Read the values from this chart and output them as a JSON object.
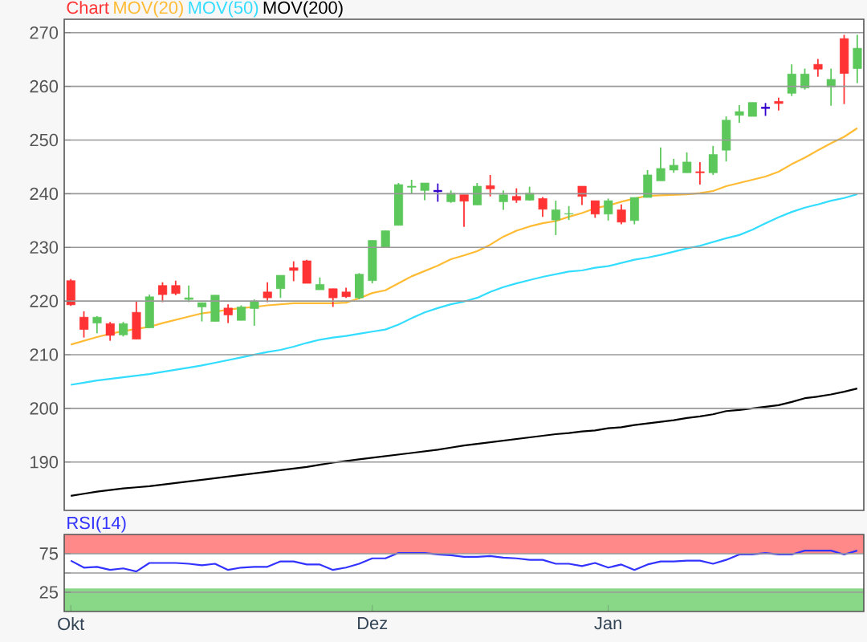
{
  "chart_data": [
    {
      "type": "candlestick",
      "grid": "y",
      "tick_labels": "y",
      "categories": [
        null,
        null,
        null,
        null,
        null,
        null,
        null,
        null,
        null,
        null,
        null,
        null,
        null,
        null,
        null,
        null,
        null,
        null,
        null,
        null,
        null,
        null,
        null,
        null,
        null,
        null,
        null,
        null,
        null,
        null,
        null,
        null,
        null,
        null,
        null,
        null,
        null,
        null,
        null,
        null,
        null,
        null,
        null,
        null,
        null,
        null,
        null,
        null,
        null,
        null,
        null,
        null,
        null,
        null,
        null,
        null,
        null,
        null,
        null,
        null,
        null
      ],
      "ylim": [
        181,
        272.5
      ],
      "yticks": [
        190,
        200,
        210,
        220,
        230,
        240,
        250,
        260,
        270
      ],
      "series": [
        {
          "type": "candlestick",
          "name": "Chart",
          "color": "#ff3333",
          "colors": [
            "#ff3333",
            "#ff3333",
            "#5cc85c",
            "#ff3333",
            "#5cc85c",
            "#ff3333",
            "#5cc85c",
            "#ff3333",
            "#ff3333",
            "#5cc85c",
            "#5cc85c",
            "#5cc85c",
            "#ff3333",
            "#5cc85c",
            "#5cc85c",
            "#ff3333",
            "#5cc85c",
            "#ff3333",
            "#ff3333",
            "#5cc85c",
            "#ff3333",
            "#ff3333",
            "#5cc85c",
            "#5cc85c",
            "#5cc85c",
            "#5cc85c",
            "#5cc85c",
            "#5cc85c",
            "#3300cc",
            "#5cc85c",
            "#ff3333",
            "#5cc85c",
            "#ff3333",
            "#5cc85c",
            "#ff3333",
            "#5cc85c",
            "#ff3333",
            "#5cc85c",
            "#5cc85c",
            "#ff3333",
            "#ff3333",
            "#5cc85c",
            "#ff3333",
            "#5cc85c",
            "#5cc85c",
            "#5cc85c",
            "#5cc85c",
            "#5cc85c",
            "#ff3333",
            "#5cc85c",
            "#5cc85c",
            "#5cc85c",
            "#5cc85c",
            "#3300cc",
            "#ff3333",
            "#5cc85c",
            "#5cc85c",
            "#ff3333",
            "#5cc85c",
            "#ff3333",
            "#5cc85c"
          ],
          "ohlc": [
            [
              223.8,
              224.1,
              219.1,
              219.3
            ],
            [
              217.0,
              218.1,
              213.2,
              214.7
            ],
            [
              215.9,
              217.2,
              214.0,
              217.0
            ],
            [
              215.8,
              216.1,
              212.6,
              213.6
            ],
            [
              213.7,
              216.1,
              213.4,
              215.8
            ],
            [
              217.9,
              220.0,
              212.9,
              212.9
            ],
            [
              215.0,
              221.2,
              215.0,
              220.8
            ],
            [
              222.9,
              223.5,
              219.8,
              221.2
            ],
            [
              222.9,
              223.8,
              221.1,
              221.4
            ],
            [
              220.3,
              222.9,
              219.8,
              220.6
            ],
            [
              218.9,
              219.7,
              216.2,
              219.7
            ],
            [
              216.2,
              221.1,
              216.2,
              221.1
            ],
            [
              218.7,
              219.4,
              215.9,
              217.4
            ],
            [
              216.4,
              219.2,
              216.4,
              218.9
            ],
            [
              218.6,
              220.3,
              215.4,
              220.0
            ],
            [
              221.7,
              223.5,
              219.8,
              220.6
            ],
            [
              222.3,
              224.8,
              220.6,
              224.8
            ],
            [
              226.2,
              227.4,
              223.7,
              225.7
            ],
            [
              227.5,
              227.7,
              223.3,
              223.3
            ],
            [
              222.1,
              224.4,
              222.1,
              223.1
            ],
            [
              222.3,
              222.3,
              218.9,
              220.6
            ],
            [
              221.7,
              222.5,
              220.6,
              220.8
            ],
            [
              220.6,
              225.2,
              220.3,
              225.0
            ],
            [
              223.8,
              231.3,
              223.3,
              231.3
            ],
            [
              230.0,
              233.1,
              230.0,
              233.1
            ],
            [
              234.1,
              242.0,
              234.1,
              241.7
            ],
            [
              241.2,
              242.6,
              240.0,
              241.4
            ],
            [
              240.6,
              242.0,
              238.8,
              242.0
            ],
            [
              240.5,
              241.9,
              238.5,
              240.5
            ],
            [
              238.5,
              240.6,
              238.3,
              240.1
            ],
            [
              239.8,
              239.8,
              233.8,
              238.6
            ],
            [
              237.9,
              242.0,
              237.9,
              241.4
            ],
            [
              241.5,
              243.5,
              239.5,
              240.9
            ],
            [
              238.5,
              240.6,
              237.0,
              239.8
            ],
            [
              239.5,
              241.0,
              238.3,
              238.8
            ],
            [
              238.8,
              241.3,
              238.7,
              240.1
            ],
            [
              239.1,
              239.4,
              235.7,
              237.1
            ],
            [
              235.1,
              238.7,
              232.3,
              237.0
            ],
            [
              236.2,
              237.7,
              235.1,
              236.3
            ],
            [
              241.4,
              241.4,
              237.9,
              239.5
            ],
            [
              238.7,
              238.7,
              235.5,
              236.2
            ],
            [
              236.2,
              239.1,
              235.0,
              238.7
            ],
            [
              237.0,
              238.0,
              234.3,
              234.7
            ],
            [
              235.0,
              239.3,
              234.3,
              239.3
            ],
            [
              239.3,
              244.4,
              239.3,
              243.5
            ],
            [
              242.4,
              248.6,
              242.4,
              244.7
            ],
            [
              244.4,
              246.5,
              243.9,
              245.3
            ],
            [
              243.9,
              247.7,
              243.9,
              245.9
            ],
            [
              244.1,
              245.9,
              241.7,
              243.9
            ],
            [
              243.9,
              248.9,
              243.5,
              247.3
            ],
            [
              248.1,
              254.4,
              246.0,
              253.7
            ],
            [
              254.6,
              256.5,
              253.2,
              255.3
            ],
            [
              254.4,
              257.0,
              254.4,
              257.0
            ],
            [
              256.0,
              256.9,
              254.5,
              256.0
            ],
            [
              257.2,
              257.9,
              255.5,
              256.8
            ],
            [
              258.7,
              264.1,
              258.2,
              262.3
            ],
            [
              259.7,
              263.3,
              259.4,
              262.3
            ],
            [
              264.1,
              265.1,
              261.8,
              263.2
            ],
            [
              259.9,
              263.3,
              256.4,
              261.3
            ],
            [
              268.9,
              269.6,
              256.7,
              262.4
            ],
            [
              263.3,
              269.6,
              260.6,
              267.1
            ]
          ]
        },
        {
          "type": "line",
          "name": "MOV(20)",
          "color": "#ffbb33",
          "values": [
            211.9,
            212.6,
            213.3,
            213.9,
            214.4,
            214.8,
            215.2,
            215.9,
            216.5,
            217.1,
            217.7,
            218.0,
            218.4,
            218.7,
            218.9,
            219.2,
            219.4,
            219.6,
            219.6,
            219.6,
            219.6,
            219.7,
            220.5,
            221.5,
            222.0,
            223.3,
            224.6,
            225.6,
            226.6,
            227.8,
            228.5,
            229.3,
            230.5,
            232.0,
            233.1,
            233.9,
            234.5,
            234.9,
            235.7,
            236.4,
            237.3,
            237.8,
            238.5,
            239.1,
            239.6,
            239.7,
            239.8,
            239.9,
            240.1,
            240.5,
            241.4,
            242.0,
            242.6,
            243.2,
            244.1,
            245.5,
            246.7,
            248.1,
            249.4,
            250.6,
            252.2
          ]
        },
        {
          "type": "line",
          "name": "MOV(50)",
          "color": "#33ddff",
          "values": [
            204.4,
            204.8,
            205.2,
            205.5,
            205.8,
            206.1,
            206.4,
            206.8,
            207.2,
            207.6,
            208.0,
            208.5,
            209.0,
            209.5,
            210.0,
            210.5,
            210.9,
            211.5,
            212.2,
            212.8,
            213.2,
            213.5,
            213.9,
            214.3,
            214.7,
            215.6,
            216.8,
            217.9,
            218.7,
            219.4,
            219.9,
            220.6,
            221.7,
            222.6,
            223.3,
            223.9,
            224.5,
            225.0,
            225.5,
            225.7,
            226.2,
            226.5,
            227.1,
            227.7,
            228.1,
            228.6,
            229.2,
            229.8,
            230.3,
            231.0,
            231.7,
            232.3,
            233.3,
            234.5,
            235.6,
            236.6,
            237.4,
            238.0,
            238.7,
            239.2,
            239.9
          ]
        },
        {
          "type": "line",
          "name": "MOV(200)",
          "color": "#000000",
          "values": [
            183.7,
            184.1,
            184.5,
            184.8,
            185.1,
            185.3,
            185.5,
            185.8,
            186.1,
            186.4,
            186.7,
            187.0,
            187.3,
            187.6,
            187.9,
            188.2,
            188.5,
            188.8,
            189.1,
            189.5,
            189.9,
            190.2,
            190.5,
            190.8,
            191.1,
            191.4,
            191.7,
            192.0,
            192.3,
            192.7,
            193.1,
            193.4,
            193.7,
            194.0,
            194.3,
            194.6,
            194.9,
            195.2,
            195.4,
            195.7,
            195.9,
            196.3,
            196.5,
            196.9,
            197.2,
            197.5,
            197.8,
            198.2,
            198.5,
            198.9,
            199.5,
            199.7,
            200.0,
            200.3,
            200.6,
            201.2,
            201.9,
            202.2,
            202.6,
            203.1,
            203.7
          ]
        }
      ]
    },
    {
      "type": "line",
      "grid": "y",
      "categories": [
        "Okt",
        null,
        null,
        null,
        null,
        null,
        null,
        null,
        null,
        null,
        null,
        null,
        null,
        null,
        null,
        null,
        null,
        null,
        null,
        null,
        null,
        null,
        null,
        "Dez",
        null,
        null,
        null,
        null,
        null,
        null,
        null,
        null,
        null,
        null,
        null,
        null,
        null,
        null,
        null,
        null,
        null,
        "Jan",
        null,
        null,
        null,
        null,
        null,
        null,
        null,
        null,
        null,
        null,
        null,
        null,
        null,
        null,
        null,
        null,
        null,
        null,
        null
      ],
      "ylim": [
        0,
        100
      ],
      "yticks": [
        25,
        {
          "value": 50,
          "label": null
        },
        75
      ],
      "bands": [
        {
          "axis": "y",
          "from": 75,
          "to": 100,
          "color": "#ff8888"
        },
        {
          "axis": "y",
          "from": 0,
          "to": 30,
          "color": "#88d888"
        }
      ],
      "series": [
        {
          "name": "RSI(14)",
          "color": "#3333ff",
          "values": [
            66,
            57,
            58,
            54,
            56,
            52,
            63,
            63,
            63,
            62,
            60,
            62,
            54,
            57,
            58,
            58,
            65,
            65,
            61,
            61,
            54,
            57,
            62,
            69,
            69,
            76,
            76,
            76,
            74,
            73,
            71,
            71,
            72,
            70,
            69,
            67,
            67,
            62,
            62,
            59,
            63,
            57,
            61,
            54,
            61,
            65,
            65,
            66,
            66,
            62,
            67,
            74,
            74,
            76,
            74,
            74,
            79,
            79,
            79,
            74,
            79
          ]
        }
      ]
    }
  ]
}
